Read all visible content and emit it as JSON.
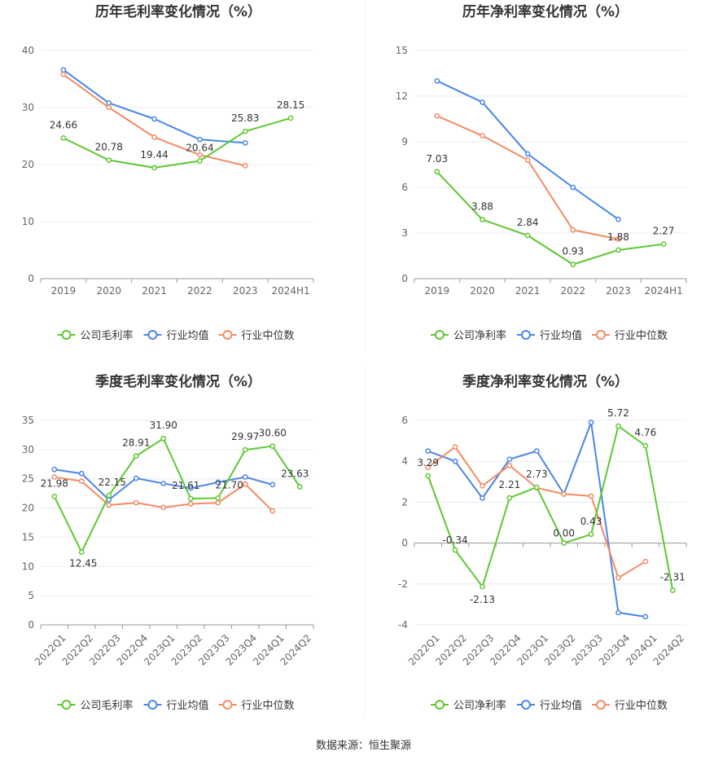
{
  "source_note": "数据来源：恒生聚源",
  "colors": {
    "company": "#5ec831",
    "avg": "#4a86e8",
    "median": "#f38b63",
    "grid": "#e8ecf4",
    "axis": "#999999"
  },
  "chart_data": [
    {
      "type": "line",
      "title": "历年毛利率变化情况（%）",
      "categories": [
        "2019",
        "2020",
        "2021",
        "2022",
        "2023",
        "2024H1"
      ],
      "ylim": [
        0,
        40
      ],
      "yticks": [
        0,
        10,
        20,
        30,
        40
      ],
      "xtick_rotate": false,
      "legend": "bottom-center",
      "series": [
        {
          "name": "公司毛利率",
          "key": "company",
          "values": [
            24.66,
            20.78,
            19.44,
            20.64,
            25.83,
            28.15
          ],
          "labels": [
            "24.66",
            "20.78",
            "19.44",
            "20.64",
            "25.83",
            "28.15"
          ]
        },
        {
          "name": "行业均值",
          "key": "avg",
          "values": [
            36.6,
            30.8,
            28.0,
            24.4,
            23.8,
            null
          ]
        },
        {
          "name": "行业中位数",
          "key": "median",
          "values": [
            35.8,
            30.0,
            24.8,
            21.7,
            19.8,
            null
          ]
        }
      ]
    },
    {
      "type": "line",
      "title": "历年净利率变化情况（%）",
      "categories": [
        "2019",
        "2020",
        "2021",
        "2022",
        "2023",
        "2024H1"
      ],
      "ylim": [
        0,
        15
      ],
      "yticks": [
        0,
        3,
        6,
        9,
        12,
        15
      ],
      "xtick_rotate": false,
      "legend": "bottom-center",
      "series": [
        {
          "name": "公司净利率",
          "key": "company",
          "values": [
            7.03,
            3.88,
            2.84,
            0.93,
            1.88,
            2.27
          ],
          "labels": [
            "7.03",
            "3.88",
            "2.84",
            "0.93",
            "1.88",
            "2.27"
          ]
        },
        {
          "name": "行业均值",
          "key": "avg",
          "values": [
            13.0,
            11.6,
            8.2,
            6.0,
            3.9,
            null
          ]
        },
        {
          "name": "行业中位数",
          "key": "median",
          "values": [
            10.7,
            9.4,
            7.8,
            3.2,
            2.6,
            null
          ]
        }
      ]
    },
    {
      "type": "line",
      "title": "季度毛利率变化情况（%）",
      "categories": [
        "2022Q1",
        "2022Q2",
        "2022Q3",
        "2022Q4",
        "2023Q1",
        "2023Q2",
        "2023Q3",
        "2023Q4",
        "2024Q1",
        "2024Q2"
      ],
      "ylim": [
        0,
        35
      ],
      "yticks": [
        0,
        5,
        10,
        15,
        20,
        25,
        30,
        35
      ],
      "xtick_rotate": true,
      "legend": "bottom-center",
      "series": [
        {
          "name": "公司毛利率",
          "key": "company",
          "values": [
            21.98,
            12.45,
            22.15,
            28.91,
            31.9,
            21.61,
            21.7,
            29.97,
            30.6,
            23.63
          ],
          "labels": [
            "21.98",
            "12.45",
            "22.15",
            "28.91",
            "31.90",
            "21.61",
            "21.70",
            "29.97",
            "30.60",
            "23.63"
          ]
        },
        {
          "name": "行业均值",
          "key": "avg",
          "values": [
            26.6,
            25.9,
            21.4,
            25.1,
            24.2,
            23.4,
            24.4,
            25.3,
            24.0,
            null
          ]
        },
        {
          "name": "行业中位数",
          "key": "median",
          "values": [
            25.3,
            24.6,
            20.5,
            20.9,
            20.1,
            20.7,
            20.9,
            24.1,
            19.5,
            null
          ]
        }
      ]
    },
    {
      "type": "line",
      "title": "季度净利率变化情况（%）",
      "categories": [
        "2022Q1",
        "2022Q2",
        "2022Q3",
        "2022Q4",
        "2023Q1",
        "2023Q2",
        "2023Q3",
        "2023Q4",
        "2024Q1",
        "2024Q2"
      ],
      "ylim": [
        -4,
        6
      ],
      "yticks": [
        -4,
        -2,
        0,
        2,
        4,
        6
      ],
      "xtick_rotate": true,
      "zero_axis": true,
      "legend": "bottom-center",
      "series": [
        {
          "name": "公司净利率",
          "key": "company",
          "values": [
            3.29,
            -0.34,
            -2.13,
            2.21,
            2.73,
            0.0,
            0.43,
            5.72,
            4.76,
            -2.31
          ],
          "labels": [
            "3.29",
            "-0.34",
            "-2.13",
            "2.21",
            "2.73",
            "0.00",
            "0.43",
            "5.72",
            "4.76",
            "-2.31"
          ]
        },
        {
          "name": "行业均值",
          "key": "avg",
          "values": [
            4.5,
            4.0,
            2.2,
            4.1,
            4.5,
            2.4,
            5.9,
            -3.4,
            -3.6,
            null
          ]
        },
        {
          "name": "行业中位数",
          "key": "median",
          "values": [
            3.7,
            4.7,
            2.8,
            3.8,
            2.7,
            2.4,
            2.3,
            -1.7,
            -0.9,
            null
          ]
        }
      ]
    }
  ]
}
